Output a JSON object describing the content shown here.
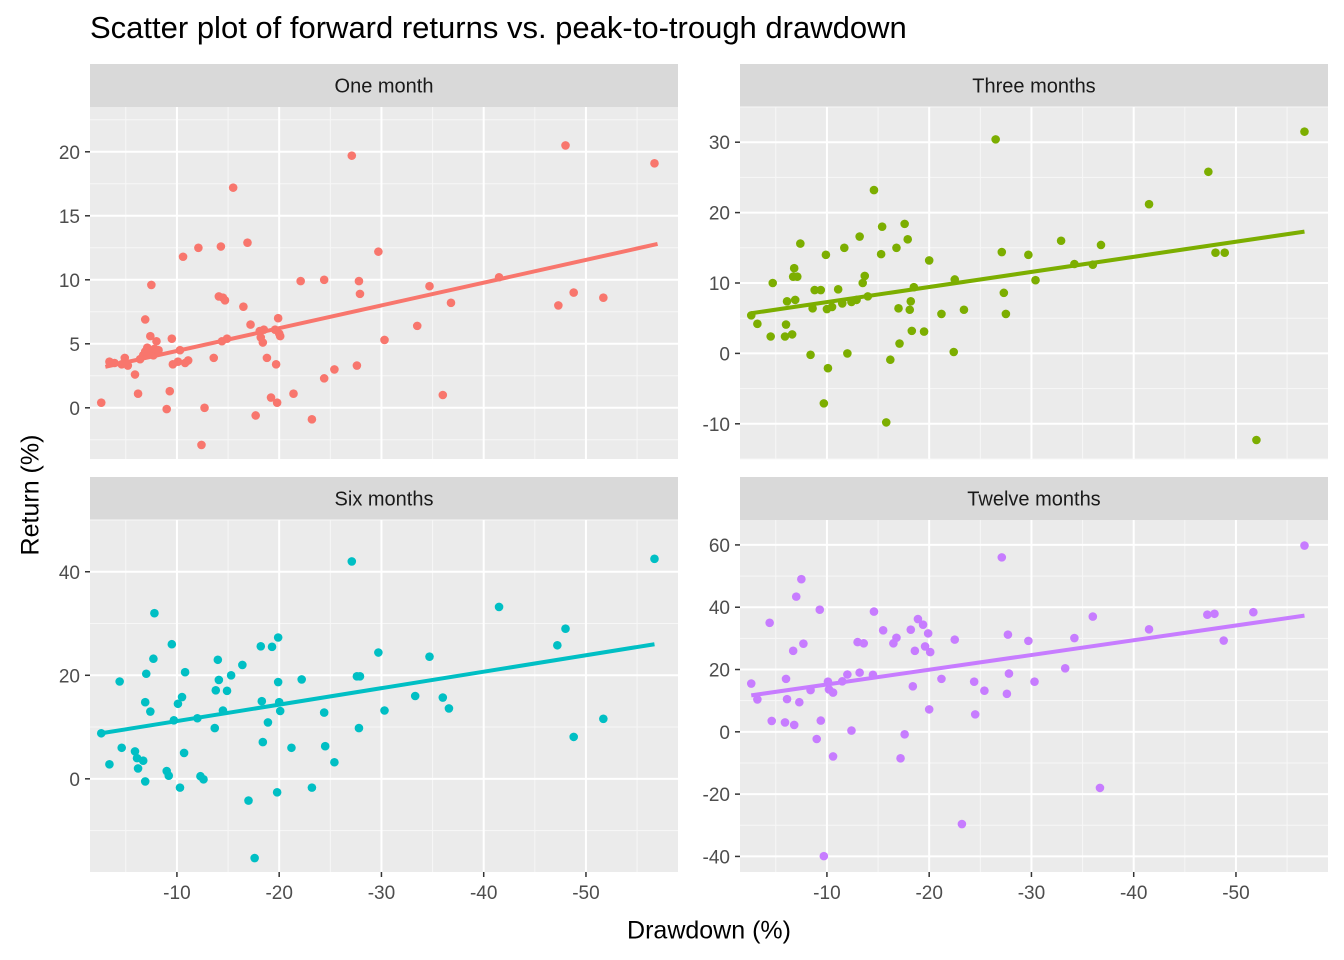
{
  "title": "Scatter plot of forward returns vs. peak-to-trough drawdown",
  "xlabel": "Drawdown (%)",
  "ylabel": "Return (%)",
  "chart_data": [
    {
      "type": "scatter",
      "panel": "One month",
      "color": "#F8766D",
      "xlim": [
        -1.5,
        -59
      ],
      "ylim": [
        -4,
        23.5
      ],
      "x_ticks": [
        -10,
        -20,
        -30,
        -40,
        -50
      ],
      "y_ticks": [
        0,
        5,
        10,
        15,
        20
      ],
      "trend": {
        "x": [
          -3,
          -57
        ],
        "y": [
          3.2,
          12.8
        ]
      },
      "points": [
        [
          -2.6,
          0.4
        ],
        [
          -3.4,
          3.6
        ],
        [
          -3.9,
          3.5
        ],
        [
          -4.6,
          3.4
        ],
        [
          -4.9,
          3.9
        ],
        [
          -5.2,
          3.3
        ],
        [
          -5.9,
          2.6
        ],
        [
          -6.2,
          1.1
        ],
        [
          -6.4,
          3.8
        ],
        [
          -6.7,
          4.1
        ],
        [
          -6.9,
          4.4
        ],
        [
          -6.9,
          6.9
        ],
        [
          -7.1,
          4.7
        ],
        [
          -7.3,
          4.3
        ],
        [
          -7.4,
          5.6
        ],
        [
          -7.5,
          9.6
        ],
        [
          -7.7,
          4.1
        ],
        [
          -7.8,
          4.6
        ],
        [
          -8.0,
          5.2
        ],
        [
          -8.2,
          4.5
        ],
        [
          -9.0,
          -0.1
        ],
        [
          -9.3,
          1.3
        ],
        [
          -9.5,
          5.4
        ],
        [
          -9.6,
          3.4
        ],
        [
          -10.1,
          3.6
        ],
        [
          -10.3,
          4.5
        ],
        [
          -10.6,
          11.8
        ],
        [
          -10.8,
          3.5
        ],
        [
          -11.1,
          3.7
        ],
        [
          -12.1,
          12.5
        ],
        [
          -12.4,
          -2.9
        ],
        [
          -12.7,
          0.0
        ],
        [
          -13.6,
          3.9
        ],
        [
          -14.1,
          8.7
        ],
        [
          -14.3,
          12.6
        ],
        [
          -14.4,
          5.2
        ],
        [
          -14.5,
          8.6
        ],
        [
          -14.7,
          8.4
        ],
        [
          -14.9,
          5.4
        ],
        [
          -15.5,
          17.2
        ],
        [
          -16.5,
          7.9
        ],
        [
          -16.9,
          12.9
        ],
        [
          -17.2,
          6.5
        ],
        [
          -17.7,
          -0.6
        ],
        [
          -18.1,
          6.0
        ],
        [
          -18.2,
          5.5
        ],
        [
          -18.4,
          5.1
        ],
        [
          -18.5,
          6.1
        ],
        [
          -18.8,
          3.9
        ],
        [
          -19.2,
          0.8
        ],
        [
          -19.6,
          6.1
        ],
        [
          -19.7,
          3.4
        ],
        [
          -19.8,
          0.4
        ],
        [
          -19.9,
          7.0
        ],
        [
          -20.0,
          5.8
        ],
        [
          -20.1,
          5.6
        ],
        [
          -21.4,
          1.1
        ],
        [
          -22.1,
          9.9
        ],
        [
          -23.2,
          -0.9
        ],
        [
          -24.4,
          10.0
        ],
        [
          -24.4,
          2.3
        ],
        [
          -25.4,
          3.0
        ],
        [
          -27.1,
          19.7
        ],
        [
          -27.6,
          3.3
        ],
        [
          -27.8,
          9.9
        ],
        [
          -27.9,
          8.9
        ],
        [
          -29.7,
          12.2
        ],
        [
          -30.3,
          5.3
        ],
        [
          -33.5,
          6.4
        ],
        [
          -34.7,
          9.5
        ],
        [
          -36.0,
          1.0
        ],
        [
          -36.8,
          8.2
        ],
        [
          -41.5,
          10.2
        ],
        [
          -47.3,
          8.0
        ],
        [
          -48.0,
          20.5
        ],
        [
          -48.8,
          9.0
        ],
        [
          -51.7,
          8.6
        ],
        [
          -56.7,
          19.1
        ]
      ]
    },
    {
      "type": "scatter",
      "panel": "Three months",
      "color": "#7CAE00",
      "xlim": [
        -1.5,
        -59
      ],
      "ylim": [
        -15,
        35
      ],
      "x_ticks": [
        -10,
        -20,
        -30,
        -40,
        -50
      ],
      "y_ticks": [
        -10,
        0,
        10,
        20,
        30
      ],
      "trend": {
        "x": [
          -2.6,
          -56.7
        ],
        "y": [
          5.7,
          17.3
        ]
      },
      "points": [
        [
          -2.6,
          5.4
        ],
        [
          -3.2,
          4.2
        ],
        [
          -4.5,
          2.4
        ],
        [
          -4.7,
          10.0
        ],
        [
          -5.9,
          2.4
        ],
        [
          -6.0,
          4.1
        ],
        [
          -6.1,
          7.4
        ],
        [
          -6.6,
          2.7
        ],
        [
          -6.7,
          10.9
        ],
        [
          -6.8,
          12.1
        ],
        [
          -6.9,
          7.6
        ],
        [
          -7.1,
          10.9
        ],
        [
          -7.4,
          15.6
        ],
        [
          -8.4,
          -0.2
        ],
        [
          -8.6,
          6.4
        ],
        [
          -8.8,
          9.0
        ],
        [
          -9.4,
          9.0
        ],
        [
          -9.7,
          -7.1
        ],
        [
          -9.9,
          14.0
        ],
        [
          -10.0,
          6.3
        ],
        [
          -10.1,
          -2.1
        ],
        [
          -10.5,
          6.6
        ],
        [
          -11.1,
          9.1
        ],
        [
          -11.5,
          7.1
        ],
        [
          -11.7,
          15.0
        ],
        [
          -12.0,
          0.0
        ],
        [
          -12.4,
          7.3
        ],
        [
          -12.9,
          7.6
        ],
        [
          -13.2,
          16.6
        ],
        [
          -13.5,
          10.0
        ],
        [
          -13.7,
          11.0
        ],
        [
          -14.0,
          8.1
        ],
        [
          -14.6,
          23.2
        ],
        [
          -15.3,
          14.1
        ],
        [
          -15.4,
          18.0
        ],
        [
          -15.8,
          -9.8
        ],
        [
          -16.2,
          -0.9
        ],
        [
          -16.8,
          15.0
        ],
        [
          -17.0,
          6.4
        ],
        [
          -17.1,
          1.4
        ],
        [
          -17.6,
          18.4
        ],
        [
          -17.9,
          16.2
        ],
        [
          -18.1,
          6.2
        ],
        [
          -18.2,
          7.4
        ],
        [
          -18.3,
          3.2
        ],
        [
          -18.5,
          9.4
        ],
        [
          -19.5,
          3.1
        ],
        [
          -20.0,
          13.2
        ],
        [
          -21.2,
          5.6
        ],
        [
          -22.4,
          0.2
        ],
        [
          -22.5,
          10.5
        ],
        [
          -23.4,
          6.2
        ],
        [
          -26.5,
          30.4
        ],
        [
          -27.1,
          14.4
        ],
        [
          -27.3,
          8.6
        ],
        [
          -27.5,
          5.6
        ],
        [
          -29.7,
          14.0
        ],
        [
          -30.4,
          10.4
        ],
        [
          -32.9,
          16.0
        ],
        [
          -34.2,
          12.7
        ],
        [
          -36.0,
          12.6
        ],
        [
          -36.8,
          15.4
        ],
        [
          -41.5,
          21.2
        ],
        [
          -47.3,
          25.8
        ],
        [
          -48.0,
          14.3
        ],
        [
          -48.9,
          14.3
        ],
        [
          -52.0,
          -12.3
        ],
        [
          -56.7,
          31.5
        ]
      ]
    },
    {
      "type": "scatter",
      "panel": "Six months",
      "color": "#00BFC4",
      "xlim": [
        -1.5,
        -59
      ],
      "ylim": [
        -18,
        50
      ],
      "x_ticks": [
        -10,
        -20,
        -30,
        -40,
        -50
      ],
      "y_ticks": [
        0,
        20,
        40
      ],
      "trend": {
        "x": [
          -2.6,
          -56.7
        ],
        "y": [
          8.8,
          26.0
        ]
      },
      "points": [
        [
          -2.6,
          8.8
        ],
        [
          -3.4,
          2.8
        ],
        [
          -4.4,
          18.8
        ],
        [
          -4.6,
          6.0
        ],
        [
          -5.9,
          5.3
        ],
        [
          -6.1,
          4.0
        ],
        [
          -6.2,
          2.0
        ],
        [
          -6.7,
          3.5
        ],
        [
          -6.9,
          -0.5
        ],
        [
          -6.9,
          14.8
        ],
        [
          -7.0,
          20.3
        ],
        [
          -7.4,
          13.0
        ],
        [
          -7.7,
          23.2
        ],
        [
          -7.8,
          32.0
        ],
        [
          -9.0,
          1.5
        ],
        [
          -9.2,
          0.6
        ],
        [
          -9.5,
          26.0
        ],
        [
          -9.7,
          11.3
        ],
        [
          -10.1,
          14.5
        ],
        [
          -10.3,
          -1.7
        ],
        [
          -10.5,
          15.8
        ],
        [
          -10.7,
          5.0
        ],
        [
          -10.8,
          20.6
        ],
        [
          -12.0,
          11.7
        ],
        [
          -12.3,
          0.5
        ],
        [
          -12.6,
          -0.1
        ],
        [
          -13.7,
          9.8
        ],
        [
          -13.8,
          17.1
        ],
        [
          -14.0,
          23.0
        ],
        [
          -14.1,
          19.1
        ],
        [
          -14.5,
          13.2
        ],
        [
          -14.9,
          17.0
        ],
        [
          -15.3,
          20.0
        ],
        [
          -16.4,
          22.0
        ],
        [
          -17.0,
          -4.2
        ],
        [
          -17.6,
          -15.3
        ],
        [
          -18.2,
          25.6
        ],
        [
          -18.3,
          15.0
        ],
        [
          -18.4,
          7.1
        ],
        [
          -18.9,
          10.9
        ],
        [
          -19.3,
          25.5
        ],
        [
          -19.8,
          -2.6
        ],
        [
          -19.9,
          18.7
        ],
        [
          -19.9,
          27.3
        ],
        [
          -20.0,
          14.8
        ],
        [
          -20.1,
          13.1
        ],
        [
          -21.2,
          6.0
        ],
        [
          -22.2,
          19.2
        ],
        [
          -23.2,
          -1.7
        ],
        [
          -24.4,
          12.8
        ],
        [
          -24.5,
          6.3
        ],
        [
          -25.4,
          3.2
        ],
        [
          -27.1,
          42.0
        ],
        [
          -27.6,
          19.8
        ],
        [
          -27.8,
          9.8
        ],
        [
          -27.9,
          19.8
        ],
        [
          -29.7,
          24.4
        ],
        [
          -30.3,
          13.2
        ],
        [
          -33.3,
          16.0
        ],
        [
          -34.7,
          23.6
        ],
        [
          -36.0,
          15.7
        ],
        [
          -36.6,
          13.6
        ],
        [
          -41.5,
          33.2
        ],
        [
          -47.2,
          25.8
        ],
        [
          -48.0,
          29.0
        ],
        [
          -48.8,
          8.1
        ],
        [
          -51.7,
          11.6
        ],
        [
          -56.7,
          42.5
        ]
      ]
    },
    {
      "type": "scatter",
      "panel": "Twelve months",
      "color": "#C77CFF",
      "xlim": [
        -1.5,
        -59
      ],
      "ylim": [
        -45,
        68
      ],
      "x_ticks": [
        -10,
        -20,
        -30,
        -40,
        -50
      ],
      "y_ticks": [
        -40,
        -20,
        0,
        20,
        40,
        60
      ],
      "trend": {
        "x": [
          -2.6,
          -56.7
        ],
        "y": [
          11.7,
          37.3
        ]
      },
      "points": [
        [
          -2.6,
          15.5
        ],
        [
          -3.2,
          10.4
        ],
        [
          -4.4,
          35.0
        ],
        [
          -4.6,
          3.5
        ],
        [
          -5.9,
          3.0
        ],
        [
          -6.0,
          17.0
        ],
        [
          -6.1,
          10.5
        ],
        [
          -6.7,
          26.0
        ],
        [
          -6.8,
          2.2
        ],
        [
          -7.0,
          43.4
        ],
        [
          -7.3,
          9.5
        ],
        [
          -7.5,
          49.0
        ],
        [
          -7.7,
          28.3
        ],
        [
          -8.4,
          13.4
        ],
        [
          -9.0,
          -2.3
        ],
        [
          -9.3,
          39.2
        ],
        [
          -9.4,
          3.6
        ],
        [
          -9.7,
          -39.9
        ],
        [
          -10.1,
          16.1
        ],
        [
          -10.2,
          13.6
        ],
        [
          -10.6,
          -7.9
        ],
        [
          -10.6,
          12.6
        ],
        [
          -11.5,
          16.2
        ],
        [
          -12.0,
          18.4
        ],
        [
          -12.4,
          0.4
        ],
        [
          -13.0,
          28.8
        ],
        [
          -13.2,
          19.0
        ],
        [
          -13.6,
          28.4
        ],
        [
          -14.5,
          18.3
        ],
        [
          -14.6,
          38.6
        ],
        [
          -15.5,
          32.6
        ],
        [
          -16.5,
          28.4
        ],
        [
          -16.8,
          30.2
        ],
        [
          -17.2,
          -8.5
        ],
        [
          -17.6,
          -0.8
        ],
        [
          -18.2,
          32.8
        ],
        [
          -18.4,
          14.6
        ],
        [
          -18.6,
          26.0
        ],
        [
          -18.9,
          36.2
        ],
        [
          -19.4,
          34.4
        ],
        [
          -19.6,
          27.4
        ],
        [
          -19.9,
          31.6
        ],
        [
          -20.0,
          7.2
        ],
        [
          -20.1,
          25.6
        ],
        [
          -21.2,
          17.0
        ],
        [
          -22.5,
          29.6
        ],
        [
          -23.2,
          -29.6
        ],
        [
          -24.4,
          16.1
        ],
        [
          -24.5,
          5.6
        ],
        [
          -25.4,
          13.2
        ],
        [
          -27.1,
          56.0
        ],
        [
          -27.6,
          12.2
        ],
        [
          -27.7,
          31.2
        ],
        [
          -27.8,
          18.7
        ],
        [
          -29.7,
          29.2
        ],
        [
          -30.3,
          16.1
        ],
        [
          -33.3,
          20.4
        ],
        [
          -34.2,
          30.1
        ],
        [
          -36.0,
          37.0
        ],
        [
          -36.7,
          -18.0
        ],
        [
          -41.5,
          32.9
        ],
        [
          -47.2,
          37.6
        ],
        [
          -47.9,
          37.9
        ],
        [
          -48.8,
          29.3
        ],
        [
          -51.7,
          38.4
        ],
        [
          -56.7,
          59.8
        ]
      ]
    }
  ]
}
